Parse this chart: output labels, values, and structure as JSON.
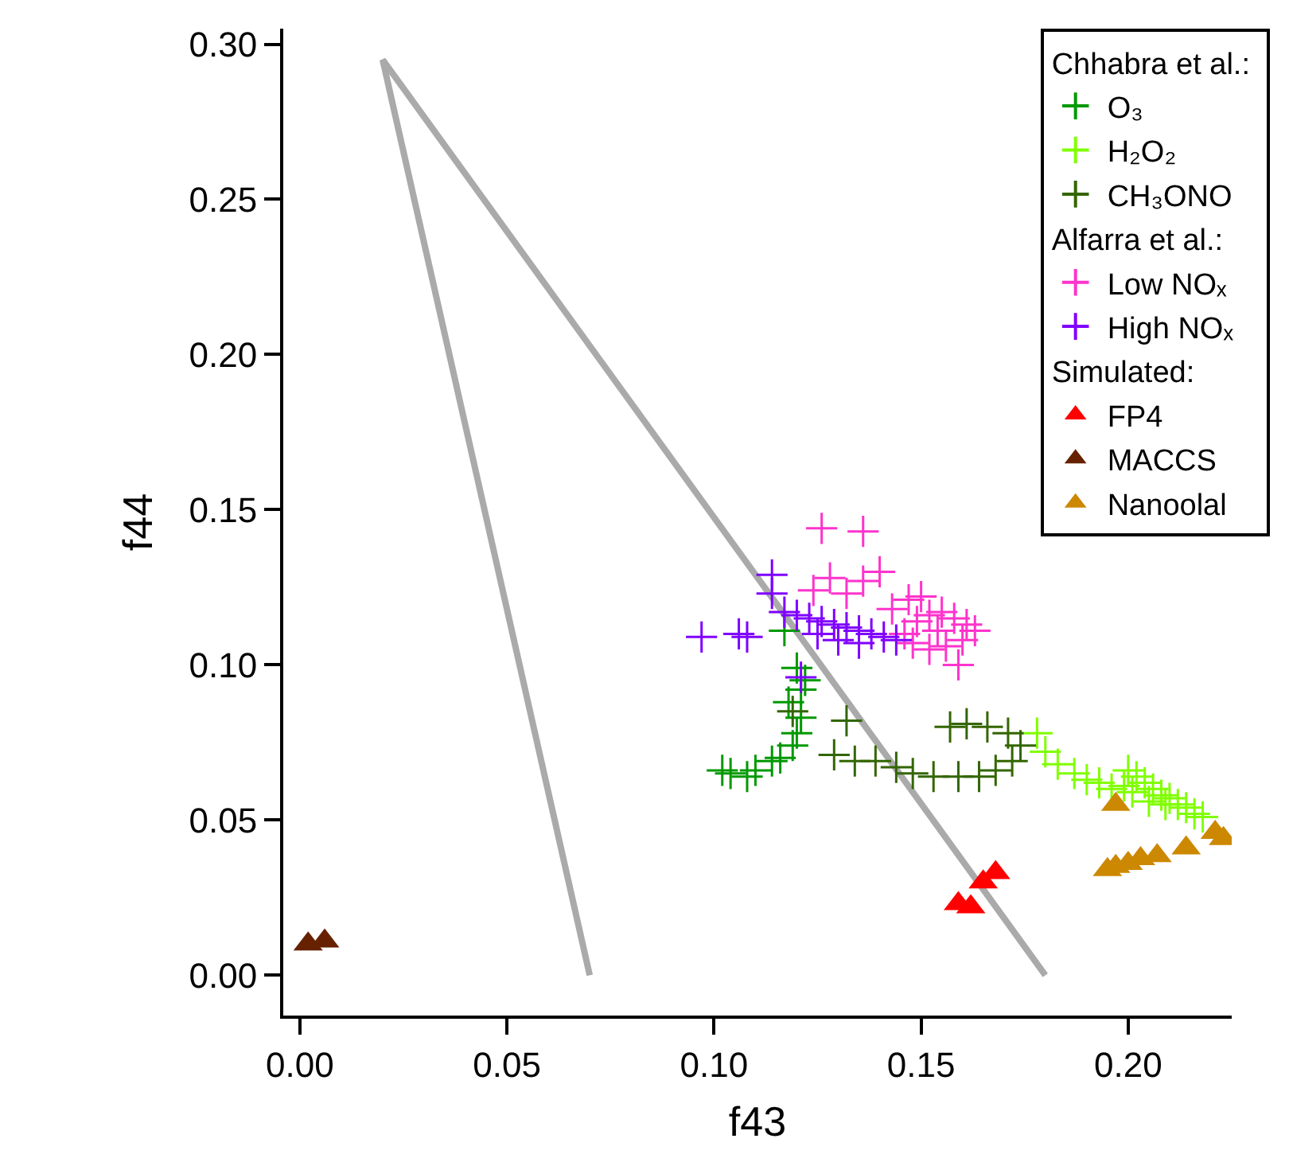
{
  "chart_data": {
    "type": "scatter",
    "xlabel": "f43",
    "ylabel": "f44",
    "xlim": [
      -0.004,
      0.225
    ],
    "ylim": [
      -0.013,
      0.305
    ],
    "xticks": [
      {
        "value": 0,
        "label": "0.00"
      },
      0.05,
      {
        "value": 0.1,
        "label": "0.10"
      },
      0.15,
      {
        "value": 0.2,
        "label": "0.20"
      }
    ],
    "yticks": [
      {
        "value": 0,
        "label": "0.00"
      },
      0.05,
      {
        "value": 0.1,
        "label": "0.10"
      },
      0.15,
      {
        "value": 0.2,
        "label": "0.20"
      },
      0.25,
      {
        "value": 0.3,
        "label": "0.30"
      }
    ],
    "legend": "top right",
    "annotations": [
      "Chhabra et al.:",
      "Alfarra et al.:",
      "Simulated:"
    ],
    "series": [
      {
        "type": "line",
        "color": "#aaaaaa",
        "marker": "none",
        "line_style": "solid",
        "x": [
          0.07,
          0.02,
          0.18
        ],
        "values": [
          0.0,
          0.295,
          0.0
        ]
      },
      {
        "name": "O₃",
        "color": "#009900",
        "marker": "cross",
        "x": [
          0.102,
          0.104,
          0.108,
          0.11,
          0.114,
          0.116,
          0.119,
          0.121,
          0.121,
          0.12,
          0.122,
          0.117,
          0.118,
          0.12
        ],
        "values": [
          0.066,
          0.065,
          0.064,
          0.066,
          0.069,
          0.07,
          0.074,
          0.083,
          0.092,
          0.099,
          0.095,
          0.111,
          0.088,
          0.078
        ]
      },
      {
        "name": "H₂O₂",
        "color": "#80ff00",
        "marker": "cross",
        "x": [
          0.178,
          0.18,
          0.183,
          0.187,
          0.19,
          0.193,
          0.196,
          0.199,
          0.2,
          0.201,
          0.202,
          0.204,
          0.205,
          0.206,
          0.208,
          0.209,
          0.21,
          0.212,
          0.214,
          0.216,
          0.218
        ],
        "values": [
          0.078,
          0.072,
          0.068,
          0.065,
          0.063,
          0.062,
          0.06,
          0.061,
          0.066,
          0.059,
          0.064,
          0.062,
          0.056,
          0.06,
          0.058,
          0.055,
          0.057,
          0.055,
          0.054,
          0.052,
          0.051
        ]
      },
      {
        "name": "CH₃ONO",
        "color": "#336600",
        "marker": "cross",
        "x": [
          0.119,
          0.132,
          0.129,
          0.134,
          0.139,
          0.144,
          0.148,
          0.153,
          0.159,
          0.164,
          0.168,
          0.172,
          0.174,
          0.171,
          0.166,
          0.161,
          0.157
        ],
        "values": [
          0.085,
          0.082,
          0.071,
          0.069,
          0.069,
          0.067,
          0.065,
          0.064,
          0.064,
          0.064,
          0.066,
          0.069,
          0.074,
          0.078,
          0.08,
          0.081,
          0.08
        ]
      },
      {
        "name": "Low NOₓ",
        "color": "#ff33cc",
        "marker": "cross",
        "x": [
          0.126,
          0.136,
          0.128,
          0.14,
          0.136,
          0.124,
          0.132,
          0.159,
          0.146,
          0.149,
          0.152,
          0.155,
          0.158,
          0.161,
          0.163,
          0.16,
          0.156,
          0.152,
          0.148,
          0.154,
          0.143,
          0.147,
          0.15
        ],
        "values": [
          0.144,
          0.143,
          0.128,
          0.13,
          0.127,
          0.124,
          0.123,
          0.1,
          0.11,
          0.114,
          0.116,
          0.117,
          0.115,
          0.113,
          0.111,
          0.108,
          0.106,
          0.105,
          0.107,
          0.111,
          0.118,
          0.121,
          0.122
        ]
      },
      {
        "name": "High NOₓ",
        "color": "#8000ff",
        "marker": "cross",
        "x": [
          0.097,
          0.106,
          0.108,
          0.114,
          0.114,
          0.117,
          0.12,
          0.123,
          0.126,
          0.129,
          0.132,
          0.135,
          0.138,
          0.141,
          0.144,
          0.125,
          0.13,
          0.135,
          0.121
        ],
        "values": [
          0.109,
          0.11,
          0.109,
          0.129,
          0.123,
          0.117,
          0.116,
          0.115,
          0.114,
          0.113,
          0.112,
          0.111,
          0.11,
          0.109,
          0.108,
          0.11,
          0.108,
          0.107,
          0.096
        ]
      },
      {
        "name": "FP4",
        "color": "#ff0000",
        "marker": "triangle",
        "x": [
          0.159,
          0.162,
          0.165,
          0.168
        ],
        "values": [
          0.023,
          0.022,
          0.03,
          0.033
        ]
      },
      {
        "name": "MACCS",
        "color": "#662200",
        "marker": "triangle",
        "x": [
          0.002,
          0.006
        ],
        "values": [
          0.01,
          0.011
        ]
      },
      {
        "name": "Nanoolal",
        "color": "#cc8800",
        "marker": "triangle",
        "x": [
          0.197,
          0.195,
          0.197,
          0.2,
          0.203,
          0.207,
          0.214,
          0.221,
          0.223
        ],
        "values": [
          0.055,
          0.034,
          0.035,
          0.036,
          0.0375,
          0.0385,
          0.041,
          0.046,
          0.044
        ]
      }
    ]
  }
}
